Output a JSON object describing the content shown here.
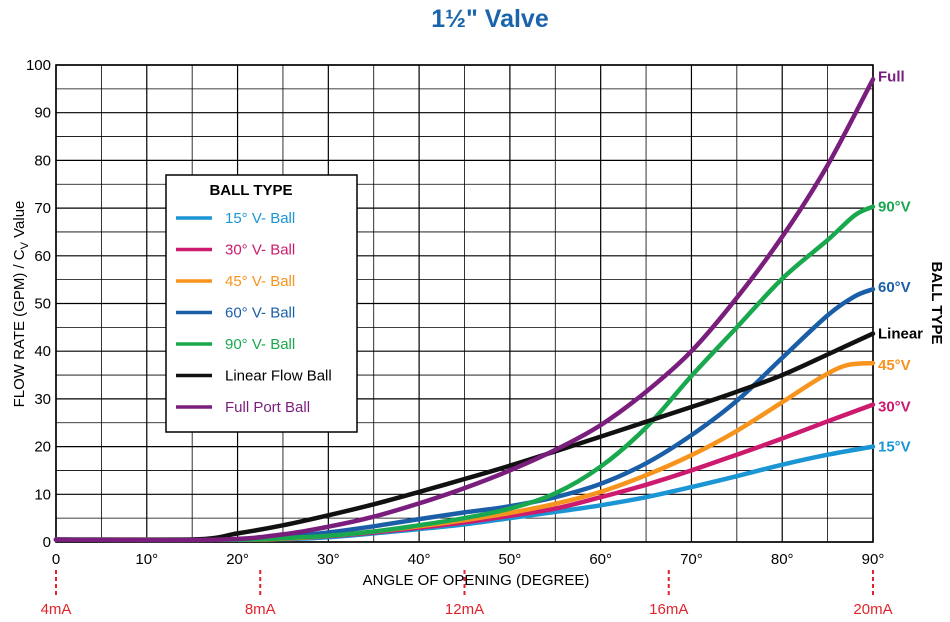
{
  "chart_data": {
    "type": "line",
    "title": "1½\" Valve",
    "xlabel": "ANGLE OF OPENING (DEGREE)",
    "ylabel_main": "FLOW RATE (GPM) / C",
    "ylabel_sub": "V",
    "ylabel_tail": " Value",
    "right_label": "BALL TYPE",
    "xlim": [
      0,
      90
    ],
    "ylim": [
      0,
      100
    ],
    "grid": true,
    "x_ticks": [
      0,
      10,
      20,
      30,
      40,
      50,
      60,
      70,
      80,
      90
    ],
    "x_tick_labels": [
      "0",
      "10°",
      "20°",
      "30°",
      "40°",
      "50°",
      "60°",
      "70°",
      "80°",
      "90°"
    ],
    "y_ticks": [
      0,
      10,
      20,
      30,
      40,
      50,
      60,
      70,
      80,
      90,
      100
    ],
    "y_tick_labels": [
      "0",
      "10",
      "20",
      "30",
      "40",
      "50",
      "60",
      "70",
      "80",
      "90",
      "100"
    ],
    "ma_markers": [
      {
        "x": 0,
        "label": "4mA"
      },
      {
        "x": 22.5,
        "label": "8mA"
      },
      {
        "x": 45,
        "label": "12mA"
      },
      {
        "x": 67.5,
        "label": "16mA"
      },
      {
        "x": 90,
        "label": "20mA"
      }
    ],
    "legend": {
      "title": "BALL TYPE",
      "position": "upper-left"
    },
    "series": [
      {
        "name": "15° V- Ball",
        "end_label": "15°V",
        "color": "#1a96d4",
        "x": [
          0,
          20,
          25,
          30,
          35,
          40,
          45,
          50,
          55,
          60,
          65,
          70,
          75,
          80,
          85,
          90
        ],
        "y": [
          0.5,
          0.5,
          0.6,
          1,
          1.8,
          2.7,
          3.7,
          5,
          6.3,
          7.7,
          9.4,
          11.5,
          13.8,
          16.2,
          18.3,
          20
        ]
      },
      {
        "name": "30° V- Ball",
        "end_label": "30°V",
        "color": "#cc1a6e",
        "x": [
          0,
          20,
          25,
          30,
          35,
          40,
          45,
          50,
          55,
          60,
          65,
          70,
          75,
          80,
          85,
          90
        ],
        "y": [
          0.5,
          0.5,
          0.7,
          1.2,
          2,
          3,
          4.1,
          5.5,
          7,
          9.4,
          12,
          15,
          18.3,
          21.7,
          25.3,
          28.8
        ]
      },
      {
        "name": "45° V- Ball",
        "end_label": "45°V",
        "color": "#f7941d",
        "x": [
          0,
          20,
          25,
          30,
          35,
          40,
          45,
          50,
          55,
          60,
          65,
          70,
          75,
          80,
          84,
          87,
          90
        ],
        "y": [
          0.5,
          0.5,
          0.7,
          1.3,
          2.2,
          3.3,
          4.6,
          6.1,
          8,
          10.5,
          14,
          18.2,
          23.3,
          29.3,
          34.2,
          37,
          37.5
        ]
      },
      {
        "name": "60° V- Ball",
        "end_label": "60°V",
        "color": "#1a5ea8",
        "x": [
          0,
          20,
          25,
          30,
          35,
          40,
          45,
          50,
          55,
          60,
          65,
          70,
          75,
          80,
          85,
          88,
          90
        ],
        "y": [
          0.5,
          0.5,
          1,
          2,
          3.3,
          4.8,
          6.2,
          7.5,
          9.4,
          12.2,
          16.5,
          22.4,
          29.6,
          38.6,
          47.5,
          51.5,
          53
        ]
      },
      {
        "name": "90° V- Ball",
        "end_label": "90°V",
        "color": "#1aa84f",
        "x": [
          0,
          20,
          25,
          30,
          35,
          40,
          45,
          50,
          55,
          60,
          65,
          70,
          75,
          80,
          85,
          88,
          90
        ],
        "y": [
          0.5,
          0.5,
          0.8,
          1.3,
          2.2,
          3.5,
          5,
          7,
          10.2,
          15.8,
          24,
          34.8,
          45,
          55.2,
          63.3,
          68.5,
          70.3
        ]
      },
      {
        "name": "Linear Flow Ball",
        "end_label": "Linear",
        "color": "#111111",
        "x": [
          0,
          15,
          20,
          25,
          30,
          35,
          40,
          45,
          50,
          55,
          60,
          65,
          70,
          75,
          80,
          85,
          90
        ],
        "y": [
          0.5,
          0.5,
          1.8,
          3.5,
          5.6,
          7.9,
          10.5,
          13.2,
          16,
          19,
          22.1,
          25.2,
          28.3,
          31.5,
          35,
          39.3,
          43.7
        ]
      },
      {
        "name": "Full Port Ball",
        "end_label": "Full",
        "color": "#7a1e7e",
        "x": [
          0,
          18,
          25,
          30,
          35,
          40,
          45,
          50,
          55,
          60,
          65,
          70,
          75,
          80,
          85,
          90
        ],
        "y": [
          0.5,
          0.5,
          1.6,
          3.2,
          5.3,
          8.1,
          11.3,
          15,
          19.3,
          24.5,
          31.5,
          40,
          51.2,
          64,
          79,
          97
        ]
      }
    ]
  }
}
